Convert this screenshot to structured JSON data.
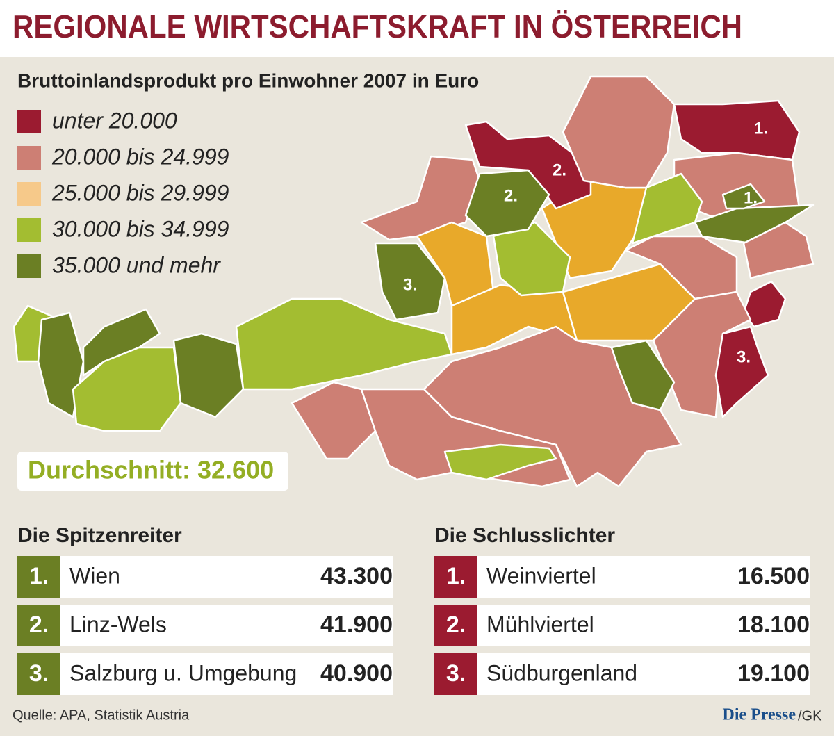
{
  "title": "REGIONALE WIRTSCHAFTSKRAFT IN ÖSTERREICH",
  "subtitle": "Bruttoinlandsprodukt pro Einwohner 2007 in Euro",
  "legend": [
    {
      "label": "unter 20.000",
      "color": "#9b1b30"
    },
    {
      "label": "20.000 bis 24.999",
      "color": "#cd7f74"
    },
    {
      "label": "25.000 bis 29.999",
      "color": "#f6c98a"
    },
    {
      "label": "30.000 bis 34.999",
      "color": "#a3bd31"
    },
    {
      "label": "35.000 und mehr",
      "color": "#6b7f24"
    }
  ],
  "map_labels": [
    "1.",
    "2.",
    "2.",
    "1.",
    "3.",
    "3."
  ],
  "average": "Durchschnitt: 32.600",
  "leaders": {
    "title": "Die Spitzenreiter",
    "rows": [
      {
        "rank": "1.",
        "name": "Wien",
        "value": "43.300"
      },
      {
        "rank": "2.",
        "name": "Linz-Wels",
        "value": "41.900"
      },
      {
        "rank": "3.",
        "name": "Salzburg u. Umgebung",
        "value": "40.900"
      }
    ]
  },
  "laggards": {
    "title": "Die Schlusslichter",
    "rows": [
      {
        "rank": "1.",
        "name": "Weinviertel",
        "value": "16.500"
      },
      {
        "rank": "2.",
        "name": "Mühlviertel",
        "value": "18.100"
      },
      {
        "rank": "3.",
        "name": "Südburgenland",
        "value": "19.100"
      }
    ]
  },
  "source": "Quelle: APA, Statistik Austria",
  "brand": "Die Presse",
  "brand_suffix": "/GK"
}
